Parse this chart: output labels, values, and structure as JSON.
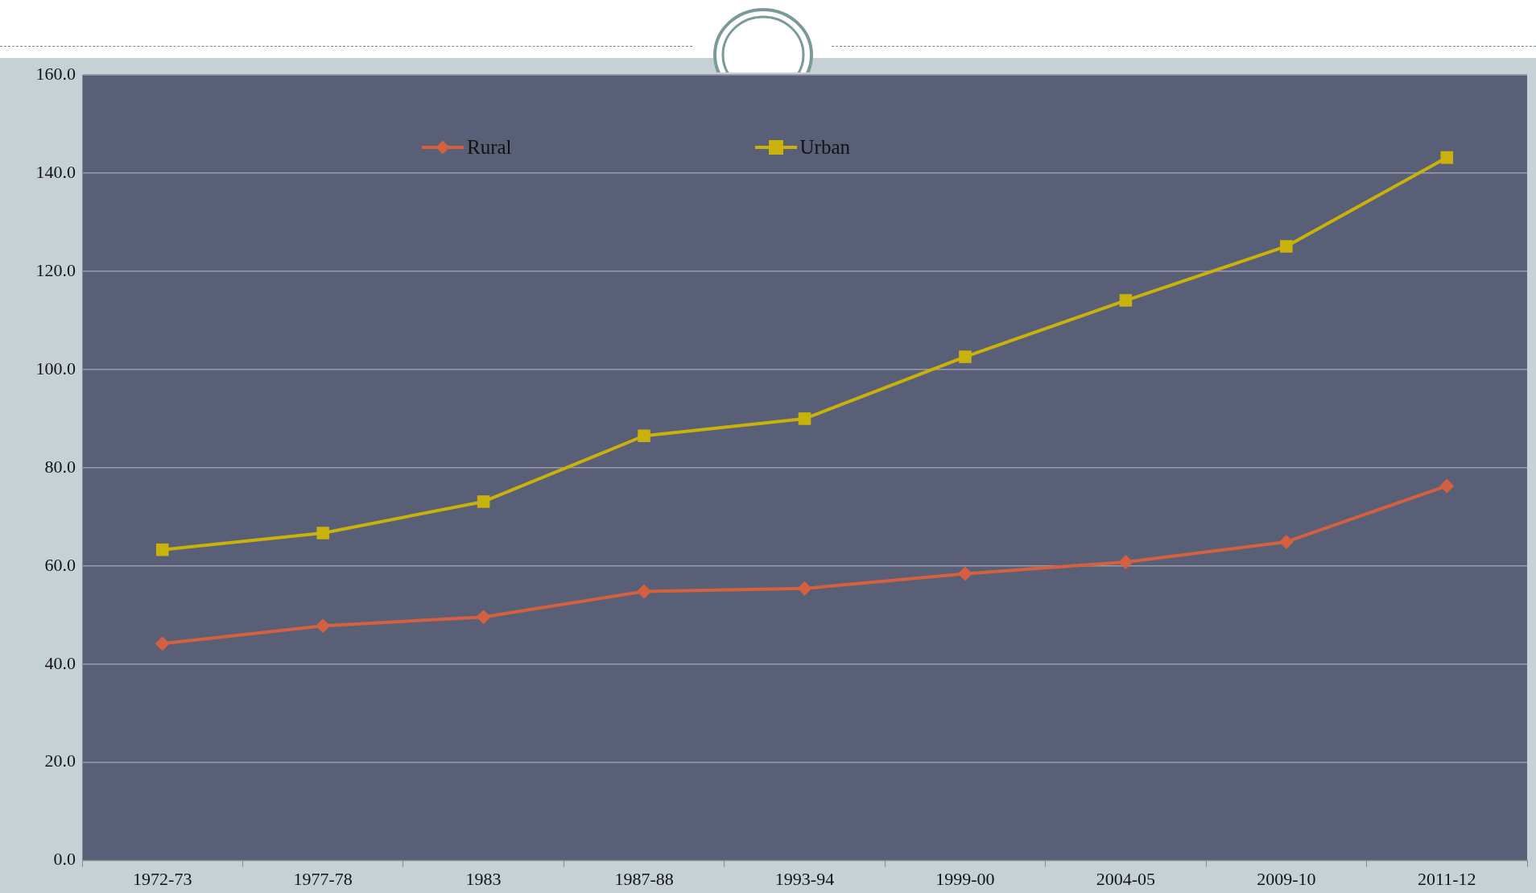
{
  "chart_data": {
    "type": "line",
    "categories": [
      "1972-73",
      "1977-78",
      "1983",
      "1987-88",
      "1993-94",
      "1999-00",
      "2004-05",
      "2009-10",
      "2011-12"
    ],
    "series": [
      {
        "name": "Rural",
        "color": "#d4603f",
        "marker": "diamond",
        "values": [
          44.2,
          47.8,
          49.6,
          54.8,
          55.4,
          58.4,
          60.8,
          64.9,
          76.3
        ]
      },
      {
        "name": "Urban",
        "color": "#c9b20a",
        "marker": "square",
        "values": [
          63.3,
          66.7,
          73.1,
          86.5,
          90.0,
          102.6,
          114.1,
          125.1,
          143.2
        ]
      }
    ],
    "ylim": [
      0,
      160
    ],
    "yticks": [
      {
        "value": 0,
        "label": "0.0"
      },
      {
        "value": 20,
        "label": "20.0"
      },
      {
        "value": 40,
        "label": "40.0"
      },
      {
        "value": 60,
        "label": "60.0"
      },
      {
        "value": 80,
        "label": "80.0"
      },
      {
        "value": 100,
        "label": "100.0"
      },
      {
        "value": 120,
        "label": "120.0"
      },
      {
        "value": 140,
        "label": "140.0"
      },
      {
        "value": 160,
        "label": "160.0"
      }
    ],
    "grid": "y",
    "legend": "top left",
    "line_style": "solid"
  }
}
